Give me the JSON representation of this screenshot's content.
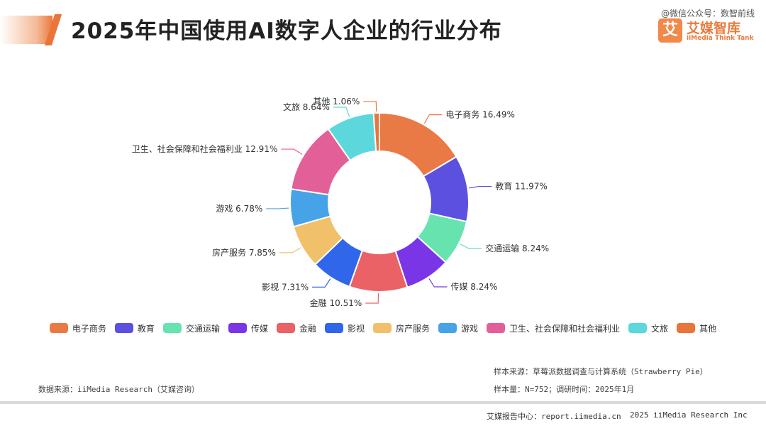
{
  "header": {
    "title": "2025年中国使用AI数字人企业的行业分布",
    "watermark": "@微信公众号：数智前线",
    "brand_mark": "艾",
    "brand_name": "艾媒智库",
    "brand_sub": "iiMedia Think Tank"
  },
  "chart_data": {
    "type": "pie",
    "title": "",
    "series": [
      {
        "values": [
          {
            "category": "电子商务",
            "value": 16.49,
            "label": "电子商务 16.49%",
            "color": "#ea7a45"
          },
          {
            "category": "教育",
            "value": 11.97,
            "label": "教育 11.97%",
            "color": "#5b50df"
          },
          {
            "category": "交通运输",
            "value": 8.24,
            "label": "交通运输 8.24%",
            "color": "#67e3b0"
          },
          {
            "category": "传媒",
            "value": 8.24,
            "label": "传媒 8.24%",
            "color": "#7a35e6"
          },
          {
            "category": "金融",
            "value": 10.51,
            "label": "金融 10.51%",
            "color": "#ea6266"
          },
          {
            "category": "影视",
            "value": 7.31,
            "label": "影视 7.31%",
            "color": "#2f66ea"
          },
          {
            "category": "房产服务",
            "value": 7.85,
            "label": "房产服务 7.85%",
            "color": "#f0c06a"
          },
          {
            "category": "游戏",
            "value": 6.78,
            "label": "游戏 6.78%",
            "color": "#47a3e8"
          },
          {
            "category": "卫生、社会保障和社会福利业",
            "value": 12.91,
            "label": "卫生、社会保障和社会福利业 12.91%",
            "color": "#e35f98"
          },
          {
            "category": "文旅",
            "value": 8.64,
            "label": "文旅 8.64%",
            "color": "#5cd8dd"
          },
          {
            "category": "其他",
            "value": 1.06,
            "label": "其他 1.06%",
            "color": "#e9753a"
          }
        ]
      }
    ],
    "legend_position": "bottom",
    "donut": true
  },
  "legend": {
    "items": [
      {
        "label": "电子商务",
        "color": "#ea7a45"
      },
      {
        "label": "教育",
        "color": "#5b50df"
      },
      {
        "label": "交通运输",
        "color": "#67e3b0"
      },
      {
        "label": "传媒",
        "color": "#7a35e6"
      },
      {
        "label": "金融",
        "color": "#ea6266"
      },
      {
        "label": "影视",
        "color": "#2f66ea"
      },
      {
        "label": "房产服务",
        "color": "#f0c06a"
      },
      {
        "label": "游戏",
        "color": "#47a3e8"
      },
      {
        "label": "卫生、社会保障和社会福利业",
        "color": "#e35f98"
      },
      {
        "label": "文旅",
        "color": "#5cd8dd"
      },
      {
        "label": "其他",
        "color": "#e9753a"
      }
    ]
  },
  "footer": {
    "data_source": "数据来源：iiMedia Research（艾媒咨询）",
    "sample_source": "样本来源：草莓派数据调查与计算系统（Strawberry Pie）",
    "sample_size": "样本量：N=752；调研时间：2025年1月",
    "report_center": "艾媒报告中心：report.iimedia.cn",
    "copyright": "2025 iiMedia Research Inc"
  }
}
